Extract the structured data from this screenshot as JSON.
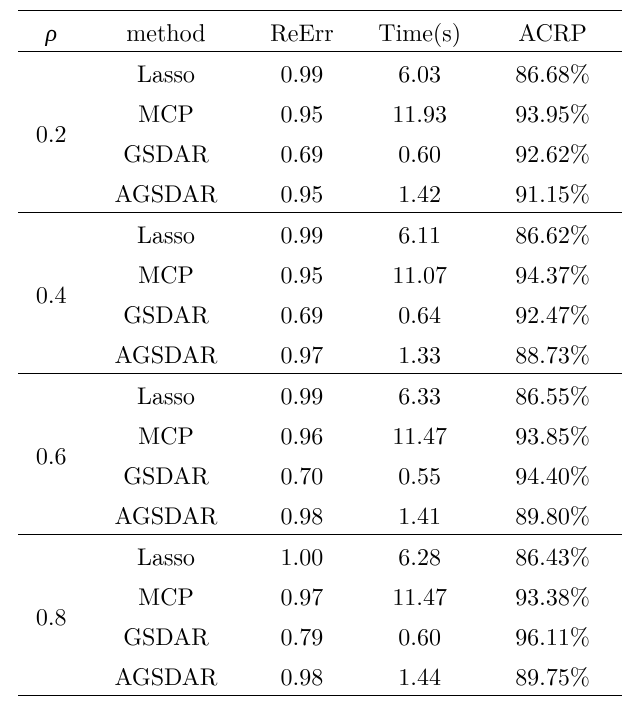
{
  "headers": {
    "rho": "ρ",
    "method": "method",
    "reerr": "ReErr",
    "time": "Time(s)",
    "acrp": "ACRP"
  },
  "groups": [
    {
      "rho": "0.2",
      "rows": [
        {
          "method": "Lasso",
          "reerr": "0.99",
          "time": "6.03",
          "acrp": "86.68%"
        },
        {
          "method": "MCP",
          "reerr": "0.95",
          "time": "11.93",
          "acrp": "93.95%"
        },
        {
          "method": "GSDAR",
          "reerr": "0.69",
          "time": "0.60",
          "acrp": "92.62%"
        },
        {
          "method": "AGSDAR",
          "reerr": "0.95",
          "time": "1.42",
          "acrp": "91.15%"
        }
      ]
    },
    {
      "rho": "0.4",
      "rows": [
        {
          "method": "Lasso",
          "reerr": "0.99",
          "time": "6.11",
          "acrp": "86.62%"
        },
        {
          "method": "MCP",
          "reerr": "0.95",
          "time": "11.07",
          "acrp": "94.37%"
        },
        {
          "method": "GSDAR",
          "reerr": "0.69",
          "time": "0.64",
          "acrp": "92.47%"
        },
        {
          "method": "AGSDAR",
          "reerr": "0.97",
          "time": "1.33",
          "acrp": "88.73%"
        }
      ]
    },
    {
      "rho": "0.6",
      "rows": [
        {
          "method": "Lasso",
          "reerr": "0.99",
          "time": "6.33",
          "acrp": "86.55%"
        },
        {
          "method": "MCP",
          "reerr": "0.96",
          "time": "11.47",
          "acrp": "93.85%"
        },
        {
          "method": "GSDAR",
          "reerr": "0.70",
          "time": "0.55",
          "acrp": "94.40%"
        },
        {
          "method": "AGSDAR",
          "reerr": "0.98",
          "time": "1.41",
          "acrp": "89.80%"
        }
      ]
    },
    {
      "rho": "0.8",
      "rows": [
        {
          "method": "Lasso",
          "reerr": "1.00",
          "time": "6.28",
          "acrp": "86.43%"
        },
        {
          "method": "MCP",
          "reerr": "0.97",
          "time": "11.47",
          "acrp": "93.38%"
        },
        {
          "method": "GSDAR",
          "reerr": "0.79",
          "time": "0.60",
          "acrp": "96.11%"
        },
        {
          "method": "AGSDAR",
          "reerr": "0.98",
          "time": "1.44",
          "acrp": "89.75%"
        }
      ]
    }
  ]
}
